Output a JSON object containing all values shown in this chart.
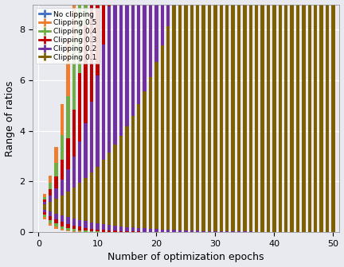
{
  "xlabel": "Number of optimization epochs",
  "ylabel": "Range of ratios",
  "n_epochs": 51,
  "bar_width": 0.6,
  "background_color": "#E8EAF0",
  "grid_color": "white",
  "colors": {
    "no_clip": "#4472C4",
    "clip05": "#ED7D31",
    "clip04": "#70AD47",
    "clip03": "#C00000",
    "clip02": "#7030A0",
    "clip01": "#7F6000"
  },
  "legend_labels": [
    "No clipping",
    "Clipping 0.5",
    "Clipping 0.4",
    "Clipping 0.3",
    "Clipping 0.2",
    "Clipping 0.1"
  ],
  "ylim": [
    0,
    9
  ],
  "yticks": [
    0,
    2,
    4,
    6,
    8
  ],
  "xticks": [
    0,
    10,
    20,
    30,
    40,
    50
  ]
}
